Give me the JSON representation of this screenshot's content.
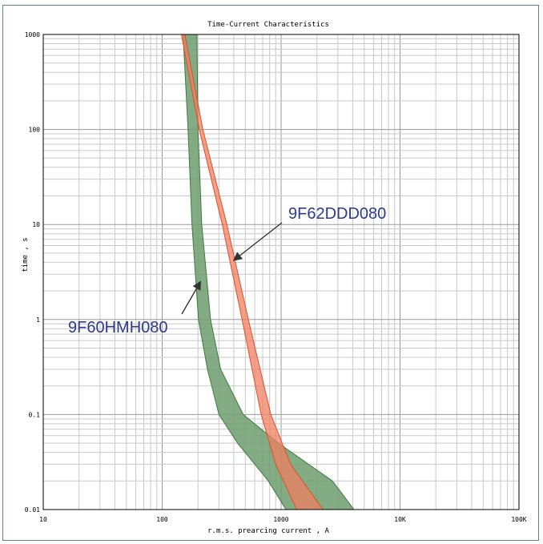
{
  "chart_data": {
    "type": "area",
    "title": "Time-Current Characteristics",
    "xlabel": "r.m.s. prearcing current , A",
    "ylabel": "time , s",
    "x_scale": "log",
    "y_scale": "log",
    "xlim": [
      10,
      100000
    ],
    "ylim": [
      0.01,
      1000
    ],
    "grid": true,
    "x_ticks": [
      {
        "value": 10,
        "label": "10"
      },
      {
        "value": 100,
        "label": "100"
      },
      {
        "value": 1000,
        "label": "1000"
      },
      {
        "value": 10000,
        "label": "10K"
      },
      {
        "value": 100000,
        "label": "100K"
      }
    ],
    "y_ticks": [
      {
        "value": 1000,
        "label": "1000"
      },
      {
        "value": 100,
        "label": "100"
      },
      {
        "value": 10,
        "label": "10"
      },
      {
        "value": 1,
        "label": "1"
      },
      {
        "value": 0.1,
        "label": "0.1"
      },
      {
        "value": 0.01,
        "label": "0.01"
      }
    ],
    "series": [
      {
        "name": "9F60HMH080",
        "color": "#6e9e6e",
        "points": [
          {
            "t": 1000,
            "i_min": 150,
            "i_max": 196
          },
          {
            "t": 100,
            "i_min": 165,
            "i_max": 200
          },
          {
            "t": 10,
            "i_min": 178,
            "i_max": 215
          },
          {
            "t": 1,
            "i_min": 202,
            "i_max": 255
          },
          {
            "t": 0.3,
            "i_min": 240,
            "i_max": 310
          },
          {
            "t": 0.1,
            "i_min": 300,
            "i_max": 480
          },
          {
            "t": 0.05,
            "i_min": 430,
            "i_max": 950
          },
          {
            "t": 0.03,
            "i_min": 600,
            "i_max": 1700
          },
          {
            "t": 0.02,
            "i_min": 780,
            "i_max": 2700
          },
          {
            "t": 0.01,
            "i_min": 1100,
            "i_max": 4100
          }
        ]
      },
      {
        "name": "9F62DDD080",
        "color": "#f08060",
        "points": [
          {
            "t": 1000,
            "i_min": 145,
            "i_max": 155
          },
          {
            "t": 100,
            "i_min": 205,
            "i_max": 220
          },
          {
            "t": 10,
            "i_min": 320,
            "i_max": 350
          },
          {
            "t": 1,
            "i_min": 470,
            "i_max": 530
          },
          {
            "t": 0.1,
            "i_min": 680,
            "i_max": 820
          },
          {
            "t": 0.03,
            "i_min": 900,
            "i_max": 1200
          },
          {
            "t": 0.01,
            "i_min": 1350,
            "i_max": 2250
          }
        ]
      }
    ],
    "annotations": [
      {
        "text": "9F62DDD080",
        "target": {
          "x": 400,
          "y": 4.2
        }
      },
      {
        "text": "9F60HMH080",
        "target": {
          "x": 210,
          "y": 2.5
        }
      }
    ]
  }
}
